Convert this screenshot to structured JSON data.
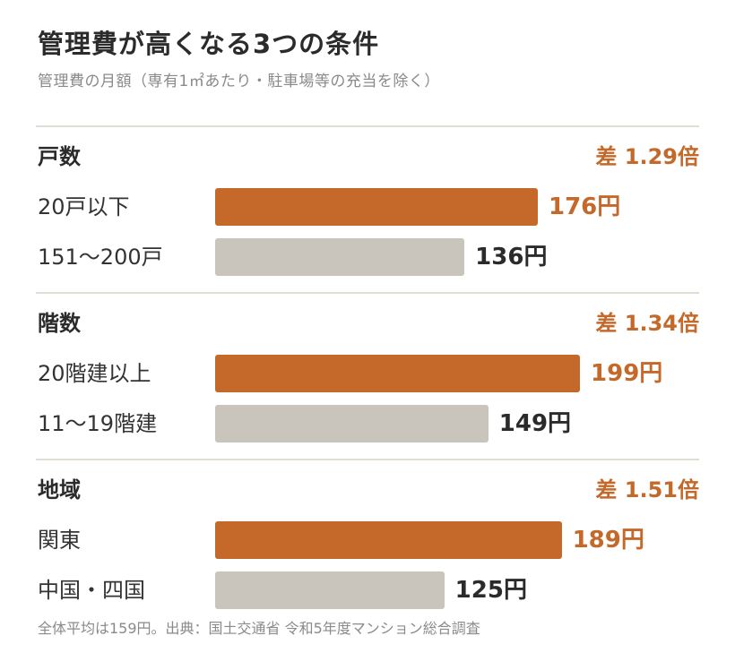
{
  "header": {
    "title": "管理費が高くなる3つの条件",
    "subtitle": "管理費の月額（専有1㎡あたり・駐車場等の充当を除く）"
  },
  "footer": {
    "note": "全体平均は159円。出典：国土交通省 令和5年度マンション総合調査"
  },
  "colors": {
    "accent": "#c4692a",
    "muted_bar": "#c9c4bc",
    "rule": "#e2ddd4"
  },
  "chart_data": {
    "type": "bar",
    "orientation": "horizontal",
    "unit": "円",
    "xlim": [
      0,
      260
    ],
    "groups": [
      {
        "label": "戸数",
        "ratio_text": "差 1.29倍",
        "rows": [
          {
            "label": "20戸以下",
            "value": 176,
            "value_text": "176円",
            "highlight": true
          },
          {
            "label": "151〜200戸",
            "value": 136,
            "value_text": "136円",
            "highlight": false
          }
        ]
      },
      {
        "label": "階数",
        "ratio_text": "差 1.34倍",
        "rows": [
          {
            "label": "20階建以上",
            "value": 199,
            "value_text": "199円",
            "highlight": true
          },
          {
            "label": "11〜19階建",
            "value": 149,
            "value_text": "149円",
            "highlight": false
          }
        ]
      },
      {
        "label": "地域",
        "ratio_text": "差 1.51倍",
        "rows": [
          {
            "label": "関東",
            "value": 189,
            "value_text": "189円",
            "highlight": true
          },
          {
            "label": "中国・四国",
            "value": 125,
            "value_text": "125円",
            "highlight": false
          }
        ]
      }
    ]
  }
}
